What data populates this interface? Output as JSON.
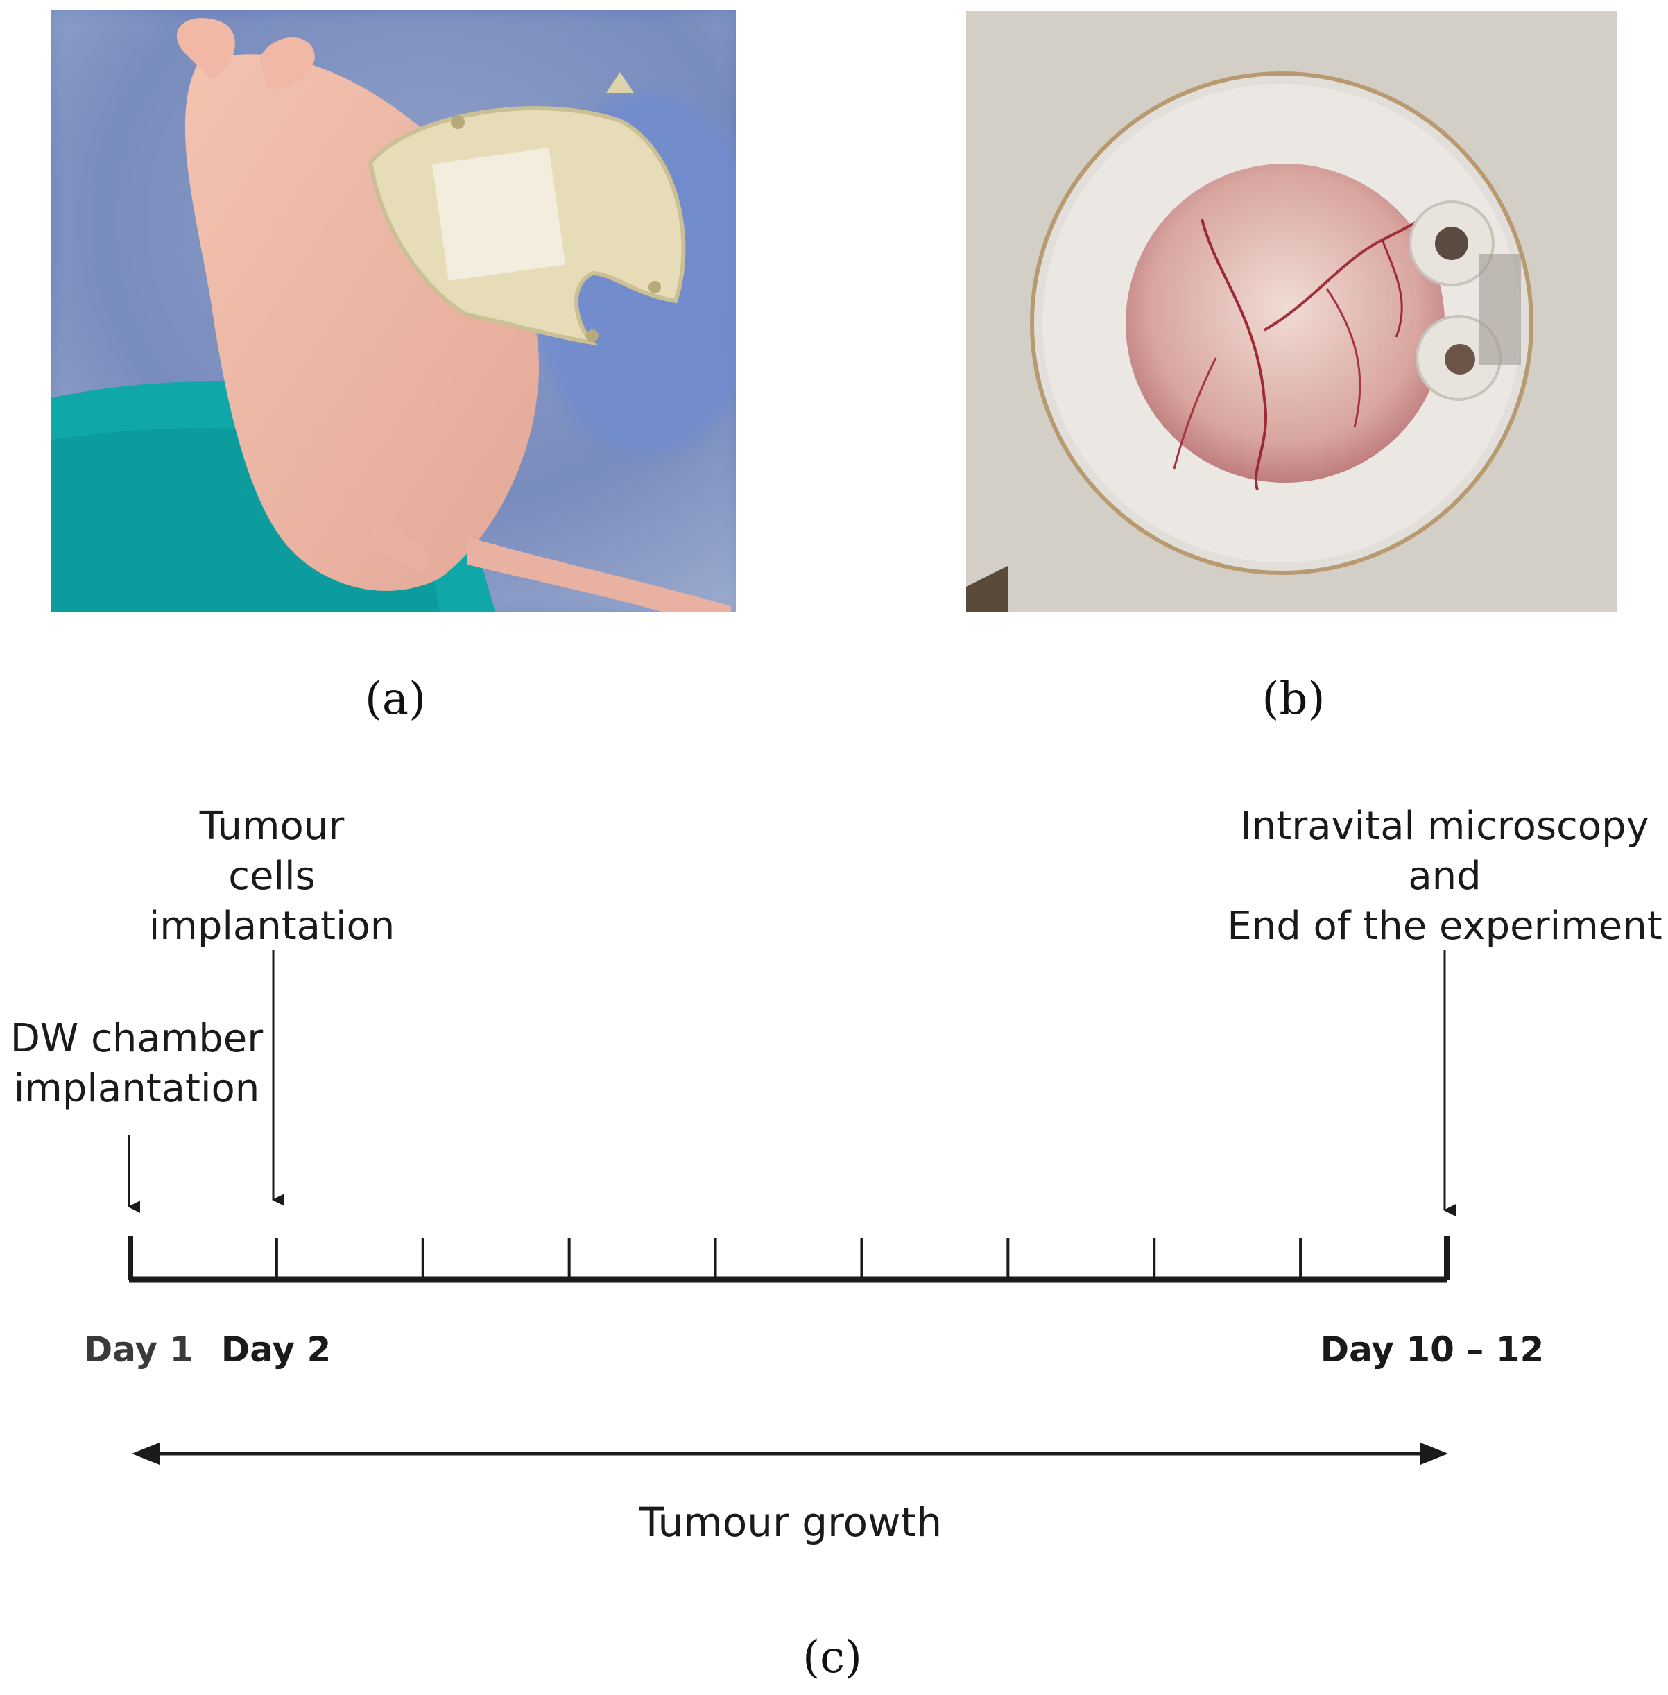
{
  "panels": {
    "a": {
      "label": "(a)"
    },
    "b": {
      "label": "(b)"
    },
    "c": {
      "label": "(c)"
    }
  },
  "timeline": {
    "events": {
      "dw": [
        "DW chamber",
        "implantation"
      ],
      "tumour": [
        "Tumour",
        "cells",
        "implantation"
      ],
      "intravital": [
        "Intravital microscopy",
        "and",
        "End of the experiment"
      ]
    },
    "days": {
      "day1": "Day 1",
      "day2": "Day 2",
      "day_end": "Day 10 – 12"
    },
    "growth_label": "Tumour growth"
  },
  "colors": {
    "line": "#1a1a1a",
    "day1_text": "#3a3a3a",
    "text": "#1a1a1a"
  }
}
